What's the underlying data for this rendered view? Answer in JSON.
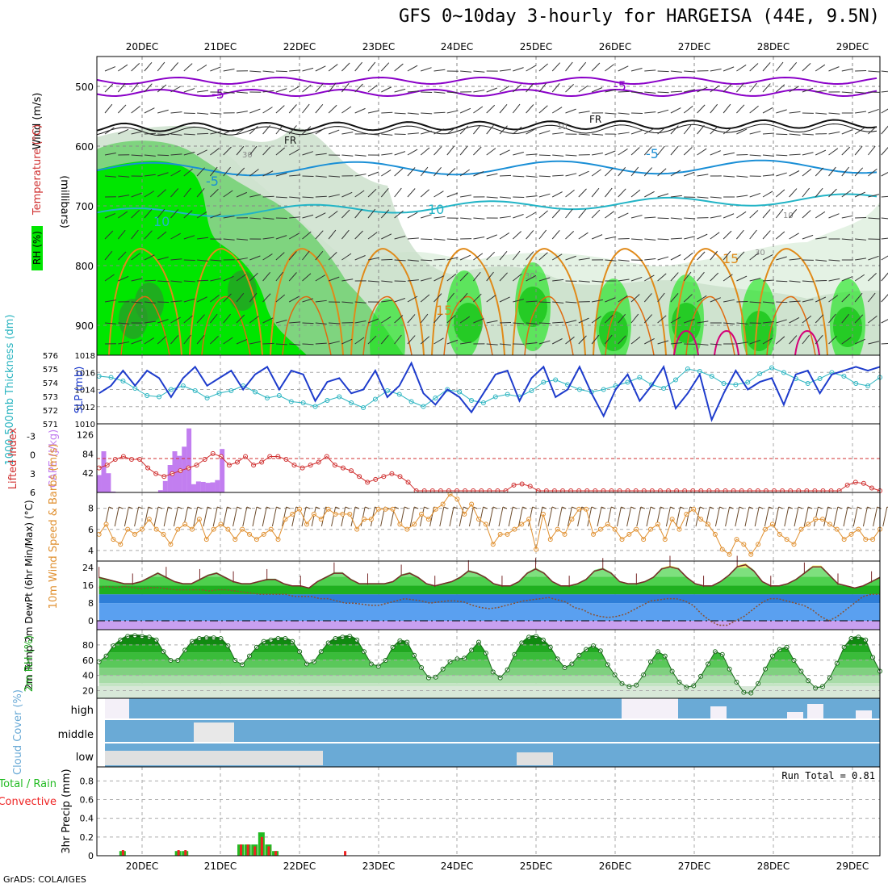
{
  "title": "GFS 0~10day 3-hourly for HARGEISA (44E, 9.5N)",
  "credit": "GrADS: COLA/IGES",
  "colors": {
    "rh_dark": "#2a9a2a",
    "rh_mid": "#7fd47f",
    "rh_bright": "#00e600",
    "rh_pale": "#e4f2e4",
    "temp_purple": "#8a00c8",
    "temp_blue": "#1a8fd6",
    "temp_cyan": "#22b4c6",
    "temp_orange": "#e08a1a",
    "temp_magenta": "#d40078",
    "slp": "#1e3ccc",
    "thickness": "#2ab4c0",
    "cape": "#c27ef0",
    "lifted": "#d03030",
    "wind_speed": "#e09030",
    "barb": "#6b4a2a",
    "cloud": "#6aaad6",
    "precip_total": "#22bb22",
    "precip_conv": "#ee2222"
  },
  "chart_data": [
    {
      "panel": "upper-air",
      "type": "heatmap",
      "x_ticks": [
        "20DEC",
        "21DEC",
        "22DEC",
        "23DEC",
        "24DEC",
        "25DEC",
        "26DEC",
        "27DEC",
        "28DEC",
        "29DEC"
      ],
      "y_ticks": [
        "500",
        "600",
        "700",
        "800",
        "900"
      ],
      "ylabel": "(millibars)",
      "legend": [
        "Wind (m/s)",
        "Temperature (°C)",
        "RH (%)"
      ],
      "ylim": [
        450,
        950
      ],
      "contour_labels": [
        "-5",
        "-5",
        "FR",
        "FR",
        "-5",
        "-5",
        "10",
        "10",
        "15",
        "15",
        "30",
        "30",
        "30",
        "10",
        "10"
      ]
    },
    {
      "panel": "slp-thickness",
      "type": "line",
      "y_left_ticks": [
        "576",
        "575",
        "574",
        "573",
        "572",
        "571"
      ],
      "y_right_ticks": [
        "1018",
        "1016",
        "1014",
        "1012",
        "1010"
      ],
      "label_left": "1000-500mb Thickness (dm)",
      "label_right": "SLP (mb)",
      "ylim_left": [
        571,
        576
      ],
      "ylim_right": [
        1010,
        1018
      ],
      "series": [
        {
          "name": "SLP (mb)",
          "values": [
            1013.5,
            1014.5,
            1016.5,
            1014.5,
            1016.5,
            1015.5,
            1013.0,
            1015.5,
            1017.0,
            1014.5,
            1015.5,
            1016.5,
            1014.0,
            1016.0,
            1017.0,
            1014.0,
            1016.5,
            1016.0,
            1012.5,
            1015.0,
            1015.5,
            1013.5,
            1014.0,
            1016.5,
            1013.0,
            1014.5,
            1017.5,
            1013.5,
            1012.0,
            1014.0,
            1013.0,
            1011.0,
            1013.5,
            1016.0,
            1016.5,
            1012.5,
            1015.5,
            1017.0,
            1013.0,
            1014.0,
            1017.0,
            1013.5,
            1010.5,
            1014.0,
            1016.0,
            1012.5,
            1014.5,
            1017.0,
            1011.5,
            1013.5,
            1016.0,
            1010.0,
            1013.5,
            1016.5,
            1014.0,
            1015.0,
            1015.5,
            1012.0,
            1016.0,
            1016.5,
            1013.5,
            1016.0,
            1016.5,
            1017.0,
            1016.5,
            1017.0
          ]
        },
        {
          "name": "Thickness (dm)",
          "values": [
            574.6,
            574.5,
            574.2,
            573.6,
            573.0,
            572.9,
            573.5,
            573.8,
            573.4,
            572.8,
            573.2,
            573.4,
            573.8,
            573.3,
            572.8,
            573.0,
            572.5,
            572.4,
            572.1,
            572.6,
            572.9,
            572.4,
            572.0,
            572.7,
            573.4,
            573.1,
            572.5,
            572.1,
            572.8,
            573.5,
            573.3,
            572.6,
            572.4,
            572.9,
            573.1,
            572.9,
            573.4,
            574.1,
            574.3,
            573.9,
            573.5,
            573.3,
            573.5,
            573.8,
            574.1,
            574.5,
            573.9,
            573.6,
            574.3,
            575.2,
            575.0,
            574.6,
            574.0,
            573.9,
            574.1,
            574.8,
            575.3,
            574.9,
            574.4,
            574.0,
            574.4,
            574.9,
            574.6,
            574.0,
            573.8,
            574.5
          ]
        }
      ]
    },
    {
      "panel": "lifted-cape",
      "type": "bar",
      "y_left_ticks": [
        "-3",
        "0",
        "3",
        "6"
      ],
      "y_right_ticks": [
        "126",
        "84",
        "42"
      ],
      "label_left": "Lifted Index",
      "label_right": "CAPE (J/kg)",
      "ylim_left": [
        -5,
        6
      ],
      "ylim_right": [
        0,
        150
      ],
      "series": [
        {
          "name": "CAPE (J/kg)",
          "values": [
            38,
            90,
            42,
            2,
            0,
            0,
            0,
            0,
            0,
            0,
            0,
            0,
            0,
            5,
            25,
            60,
            90,
            80,
            100,
            140,
            18,
            24,
            23,
            21,
            22,
            27,
            95,
            0,
            0,
            0,
            0,
            0,
            0,
            0,
            0,
            0,
            0,
            0,
            0,
            0,
            0,
            0,
            0,
            0,
            0,
            0,
            0,
            0,
            0,
            0,
            0,
            0,
            0,
            0,
            0,
            0,
            0,
            0,
            0,
            0,
            0,
            0,
            0,
            0,
            0,
            0,
            0,
            0,
            0,
            0,
            0,
            0,
            0,
            0,
            0,
            0,
            0,
            0,
            0
          ]
        },
        {
          "name": "Lifted Index",
          "values": [
            2,
            1.5,
            0.5,
            0,
            0.5,
            0.5,
            2,
            3,
            3.5,
            3,
            2.5,
            2,
            1.5,
            0.5,
            -0.5,
            0,
            1.5,
            1,
            0,
            1.5,
            1,
            0,
            0,
            0.5,
            1.5,
            2,
            1.5,
            1,
            0,
            1.5,
            2,
            2.5,
            3.5,
            4.5,
            4,
            3.5,
            3,
            3.5,
            4.5,
            6,
            6,
            6,
            6,
            6,
            6,
            6,
            6,
            6,
            6,
            6,
            6,
            5,
            4.8,
            5.2,
            6,
            6,
            6,
            6,
            6,
            6,
            6,
            6,
            6,
            6,
            6,
            6,
            6,
            6,
            6,
            6,
            6,
            6,
            6,
            6,
            6,
            6,
            6,
            6,
            6,
            6,
            6,
            6,
            6,
            6,
            6,
            6,
            6,
            6,
            6,
            6,
            6,
            6,
            5,
            4.5,
            4.7,
            5.5,
            6
          ]
        }
      ]
    },
    {
      "panel": "wind-10m",
      "type": "line",
      "y_ticks": [
        "8",
        "6",
        "4"
      ],
      "ylabel": "10m Wind Speed & Barbs (m/s)",
      "ylim": [
        3,
        9.5
      ],
      "series": [
        {
          "name": "10m Wind Speed",
          "values": [
            5.5,
            6.5,
            5,
            4.5,
            6,
            5.5,
            6,
            7,
            6,
            5.5,
            4.5,
            6,
            6.5,
            6,
            7,
            5,
            6,
            6.5,
            6,
            5,
            6,
            5.5,
            5,
            5.5,
            6,
            5,
            7,
            7.5,
            8,
            6.5,
            7.5,
            7,
            8,
            7.5,
            7.5,
            7.5,
            6,
            7,
            7,
            8,
            8,
            8,
            6.5,
            6,
            6.5,
            7.5,
            7,
            8,
            8.5,
            9.5,
            9,
            7.5,
            8.5,
            7,
            6.5,
            4.5,
            5.5,
            5.5,
            6,
            6.5,
            7,
            4,
            7.5,
            5,
            6,
            5.5,
            7,
            8,
            8,
            5.5,
            6,
            6.5,
            6,
            5,
            5.5,
            6,
            5,
            6,
            6.5,
            5,
            7,
            6,
            7.5,
            8,
            7,
            6.5,
            5.5,
            4,
            3.5,
            5,
            4.5,
            3.5,
            4.5,
            6,
            6.5,
            5.5,
            5,
            4.5,
            6,
            6.5,
            7,
            7,
            6.5,
            6,
            5,
            5.5,
            6,
            5,
            5,
            6
          ]
        }
      ]
    },
    {
      "panel": "temperature-2m",
      "type": "area",
      "y_ticks": [
        "24",
        "16",
        "8",
        "0"
      ],
      "ylabel": "2m Temp 2m DewPt (6hr Min/Max) (°C)",
      "ylim": [
        -4,
        27
      ],
      "series": [
        {
          "name": "2m Temp",
          "values": [
            20,
            19,
            18,
            17,
            17,
            18,
            20,
            22,
            20,
            18,
            17,
            17,
            19,
            21,
            22,
            20,
            18,
            17,
            17,
            18,
            19,
            19,
            17,
            16,
            16,
            15,
            18,
            20,
            22,
            22,
            19,
            17,
            17,
            17,
            17,
            18,
            21,
            22,
            20,
            17,
            16,
            17,
            18,
            20,
            23,
            22,
            20,
            17,
            16,
            16,
            18,
            22,
            24,
            22,
            18,
            16,
            16,
            17,
            19,
            23,
            24,
            22,
            18,
            17,
            17,
            18,
            20,
            24,
            25,
            24,
            20,
            17,
            16,
            16,
            18,
            21,
            25,
            26,
            23,
            18,
            16,
            16,
            17,
            19,
            22,
            25,
            25,
            21,
            17,
            16,
            15,
            16,
            18,
            20
          ]
        },
        {
          "name": "2m DewPt",
          "values": [
            15,
            15.5,
            15,
            15.5,
            15,
            14.5,
            15,
            15,
            14.5,
            14,
            14,
            14,
            14,
            13.5,
            14,
            14,
            13.5,
            13,
            12.5,
            12,
            12,
            12,
            12,
            11,
            11,
            11,
            10,
            10,
            9,
            8,
            8,
            7.5,
            7,
            7,
            8,
            9,
            10,
            9.5,
            9,
            8,
            8.5,
            9,
            9,
            8.5,
            7,
            6,
            5.5,
            6,
            7,
            8,
            9,
            9.5,
            10,
            10.5,
            9.5,
            8.5,
            6,
            5,
            3,
            2,
            1.5,
            2,
            3,
            5,
            7,
            9,
            9.5,
            10,
            10,
            9,
            7,
            3,
            0,
            -2,
            -2,
            0,
            2,
            5,
            8,
            10,
            10,
            9,
            8,
            7,
            5,
            2,
            0,
            2,
            5,
            8,
            11,
            12,
            12
          ]
        }
      ]
    },
    {
      "panel": "rh-2m",
      "type": "area",
      "y_ticks": [
        "80",
        "60",
        "40",
        "20"
      ],
      "ylabel": "2m RH (%)",
      "ylim": [
        10,
        100
      ],
      "series": [
        {
          "name": "2m RH",
          "values": [
            58,
            66,
            80,
            88,
            93,
            94,
            93,
            92,
            88,
            72,
            60,
            60,
            74,
            86,
            90,
            91,
            91,
            90,
            80,
            60,
            54,
            66,
            78,
            86,
            88,
            90,
            90,
            86,
            72,
            55,
            58,
            72,
            84,
            90,
            92,
            93,
            88,
            72,
            55,
            52,
            60,
            78,
            87,
            85,
            67,
            50,
            36,
            37,
            48,
            58,
            62,
            63,
            74,
            85,
            70,
            44,
            36,
            47,
            68,
            84,
            92,
            93,
            88,
            78,
            62,
            50,
            55,
            67,
            75,
            80,
            73,
            54,
            40,
            28,
            24,
            26,
            40,
            58,
            72,
            66,
            45,
            30,
            23,
            25,
            38,
            55,
            72,
            68,
            48,
            30,
            16,
            15,
            28,
            48,
            66,
            75,
            78,
            60,
            45,
            32,
            22,
            24,
            36,
            56,
            78,
            90,
            92,
            88,
            64,
            45
          ]
        }
      ]
    },
    {
      "panel": "cloud-cover",
      "type": "bar",
      "y_ticks": [
        "high",
        "middle",
        "low"
      ],
      "ylabel": "Cloud Cover (%)",
      "ylim": [
        0,
        100
      ]
    },
    {
      "panel": "precip",
      "type": "bar",
      "y_ticks": [
        "0.8",
        "0.6",
        "0.4",
        "0.2",
        "0"
      ],
      "ylabel": "3hr Precip (mm)",
      "legend": [
        "Total / Rain",
        "Convective"
      ],
      "annotation": "Run Total = 0.81",
      "ylim": [
        0,
        0.95
      ],
      "series": [
        {
          "name": "Total / Rain",
          "values": [
            0,
            0,
            0.05,
            0,
            0,
            0,
            0,
            0,
            0,
            0,
            0.05,
            0.05,
            0,
            0,
            0,
            0,
            0,
            0,
            0,
            0.12,
            0.12,
            0.12,
            0.25,
            0.12,
            0.05,
            0,
            0,
            0,
            0,
            0,
            0,
            0,
            0,
            0,
            0
          ]
        },
        {
          "name": "Convective",
          "values": [
            0,
            0,
            0.06,
            0,
            0,
            0,
            0,
            0,
            0,
            0,
            0.06,
            0.06,
            0,
            0,
            0,
            0,
            0,
            0,
            0,
            0.12,
            0.12,
            0.1,
            0.2,
            0.1,
            0.05,
            0,
            0,
            0,
            0,
            0,
            0,
            0,
            0,
            0,
            0.05
          ]
        }
      ]
    }
  ]
}
